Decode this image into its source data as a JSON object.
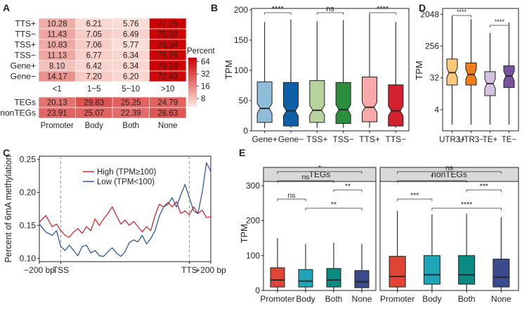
{
  "panel_labels": [
    "A",
    "B",
    "C",
    "D",
    "E"
  ],
  "chart_data": [
    {
      "panel": "A",
      "type": "heatmap",
      "title": "",
      "legend_title": "Percent",
      "legend_ticks": [
        64,
        32,
        16,
        8
      ],
      "color_scale": [
        "#fde9e2",
        "#cc0000"
      ],
      "top": {
        "rows": [
          "TTS+",
          "TTS−",
          "TSS+",
          "TSS−",
          "Gene+",
          "Gene−"
        ],
        "cols": [
          "<1",
          "1~5",
          "5~10",
          ">10"
        ],
        "values": [
          [
            10.28,
            6.21,
            5.76,
            77.75
          ],
          [
            11.43,
            7.05,
            6.49,
            75.02
          ],
          [
            10.83,
            7.06,
            5.77,
            76.34
          ],
          [
            11.13,
            6.77,
            6.34,
            75.76
          ],
          [
            8.1,
            6.42,
            6.34,
            79.14
          ],
          [
            14.17,
            7.2,
            6.2,
            72.43
          ]
        ]
      },
      "bottom": {
        "rows": [
          "TEGs",
          "nonTEGs"
        ],
        "cols": [
          "Promoter",
          "Body",
          "Both",
          "None"
        ],
        "values": [
          [
            20.13,
            29.83,
            25.25,
            24.79
          ],
          [
            23.91,
            25.07,
            22.39,
            28.63
          ]
        ]
      }
    },
    {
      "panel": "B",
      "type": "boxplot",
      "ylabel": "TPM",
      "ylim": [
        0,
        200
      ],
      "yticks": [
        0,
        50,
        100,
        150,
        200
      ],
      "categories": [
        "Gene+",
        "Gene−",
        "TSS+",
        "TSS−",
        "TTS+",
        "TTS−"
      ],
      "colors": [
        "#8fbcd8",
        "#0f5fa6",
        "#b5d39a",
        "#2a8e3e",
        "#f7a9a9",
        "#d2202f"
      ],
      "boxes": [
        {
          "whislo": 5,
          "q1": 14,
          "med": 37,
          "q3": 81,
          "whishi": 180
        },
        {
          "whislo": 5,
          "q1": 8,
          "med": 33,
          "q3": 80,
          "whishi": 184
        },
        {
          "whislo": 5,
          "q1": 14,
          "med": 34,
          "q3": 83,
          "whishi": 181
        },
        {
          "whislo": 5,
          "q1": 12,
          "med": 35,
          "q3": 80,
          "whishi": 183
        },
        {
          "whislo": 5,
          "q1": 15,
          "med": 39,
          "q3": 89,
          "whishi": 193
        },
        {
          "whislo": 5,
          "q1": 8,
          "med": 33,
          "q3": 76,
          "whishi": 180
        }
      ],
      "significance": [
        {
          "from": 0,
          "to": 1,
          "label": "****"
        },
        {
          "from": 2,
          "to": 3,
          "label": "ns"
        },
        {
          "from": 4,
          "to": 5,
          "label": "****"
        }
      ]
    },
    {
      "panel": "D",
      "type": "boxplot",
      "ylabel": "TPM",
      "yscale": "log2",
      "ylim": [
        1,
        3000
      ],
      "yticks": [
        4,
        32,
        256,
        2048
      ],
      "categories": [
        "UTR3+",
        "UTR3−",
        "TE+",
        "TE−"
      ],
      "colors": [
        "#fbc77a",
        "#f07f17",
        "#d3c3e3",
        "#7a52a0"
      ],
      "boxes": [
        {
          "whislo": 1.5,
          "q1": 20,
          "med": 45,
          "q3": 110,
          "whishi": 1800
        },
        {
          "whislo": 1.5,
          "q1": 20,
          "med": 40,
          "q3": 85,
          "whishi": 1500
        },
        {
          "whislo": 1.5,
          "q1": 10,
          "med": 22,
          "q3": 48,
          "whishi": 600
        },
        {
          "whislo": 1.5,
          "q1": 17,
          "med": 36,
          "q3": 70,
          "whishi": 1200
        }
      ],
      "significance": [
        {
          "from": 0,
          "to": 1,
          "label": "****"
        },
        {
          "from": 2,
          "to": 3,
          "label": "****"
        }
      ]
    },
    {
      "panel": "C",
      "type": "line",
      "ylabel": "Percent of 6mA methylation",
      "ylim": [
        0.095,
        0.255
      ],
      "yticks": [
        0.1,
        0.15,
        0.2,
        0.25
      ],
      "xtick_labels": [
        "−200 bp",
        "TSS",
        "TTS",
        "+200 bp"
      ],
      "xtick_positions": [
        0,
        10,
        70,
        80
      ],
      "vlines": [
        10,
        70
      ],
      "legend": [
        "High (TPM≥100)",
        "Low (TPM<100)"
      ],
      "series": [
        {
          "name": "High (TPM≥100)",
          "color": "#d7191c",
          "x": [
            0,
            3,
            6,
            8,
            10,
            12,
            14,
            16,
            18,
            20,
            22,
            24,
            26,
            28,
            30,
            32,
            34,
            36,
            38,
            40,
            42,
            44,
            46,
            48,
            50,
            52,
            54,
            56,
            58,
            60,
            62,
            64,
            66,
            68,
            70,
            72,
            74,
            76,
            78,
            80
          ],
          "y": [
            0.155,
            0.165,
            0.148,
            0.152,
            0.142,
            0.135,
            0.132,
            0.14,
            0.145,
            0.138,
            0.148,
            0.142,
            0.16,
            0.15,
            0.16,
            0.168,
            0.178,
            0.165,
            0.152,
            0.158,
            0.15,
            0.156,
            0.148,
            0.14,
            0.148,
            0.142,
            0.165,
            0.182,
            0.178,
            0.185,
            0.178,
            0.186,
            0.168,
            0.172,
            0.166,
            0.178,
            0.168,
            0.173,
            0.162,
            0.163
          ]
        },
        {
          "name": "Low (TPM<100)",
          "color": "#1f4e9c",
          "x": [
            0,
            3,
            6,
            8,
            10,
            12,
            14,
            16,
            18,
            20,
            22,
            24,
            26,
            28,
            30,
            32,
            34,
            36,
            38,
            40,
            42,
            44,
            46,
            48,
            50,
            52,
            54,
            56,
            58,
            60,
            62,
            64,
            66,
            68,
            70,
            72,
            74,
            76,
            78,
            80
          ],
          "y": [
            0.152,
            0.14,
            0.135,
            0.142,
            0.118,
            0.112,
            0.12,
            0.112,
            0.104,
            0.118,
            0.12,
            0.108,
            0.112,
            0.104,
            0.103,
            0.11,
            0.116,
            0.108,
            0.103,
            0.11,
            0.124,
            0.128,
            0.125,
            0.135,
            0.122,
            0.13,
            0.142,
            0.164,
            0.178,
            0.182,
            0.192,
            0.178,
            0.196,
            0.212,
            0.192,
            0.172,
            0.168,
            0.2,
            0.245,
            0.232
          ]
        }
      ]
    },
    {
      "panel": "E",
      "type": "boxplot",
      "ylabel": "TPM",
      "ylim": [
        0,
        300
      ],
      "yticks": [
        0,
        100,
        200,
        300
      ],
      "facets": [
        "TEGs",
        "nonTEGs"
      ],
      "categories": [
        "Promoter",
        "Body",
        "Both",
        "None"
      ],
      "colors": [
        "#e04434",
        "#20a4b8",
        "#0a8a83",
        "#3a4a8c"
      ],
      "boxes": [
        [
          {
            "whislo": 1,
            "q1": 10,
            "med": 30,
            "q3": 65,
            "whishi": 150
          },
          {
            "whislo": 1,
            "q1": 10,
            "med": 27,
            "q3": 60,
            "whishi": 133
          },
          {
            "whislo": 1,
            "q1": 10,
            "med": 30,
            "q3": 63,
            "whishi": 137
          },
          {
            "whislo": 1,
            "q1": 8,
            "med": 25,
            "q3": 57,
            "whishi": 133
          }
        ],
        [
          {
            "whislo": 1,
            "q1": 10,
            "med": 40,
            "q3": 98,
            "whishi": 228
          },
          {
            "whislo": 1,
            "q1": 18,
            "med": 45,
            "q3": 100,
            "whishi": 218
          },
          {
            "whislo": 1,
            "q1": 18,
            "med": 45,
            "q3": 100,
            "whishi": 220
          },
          {
            "whislo": 1,
            "q1": 10,
            "med": 38,
            "q3": 90,
            "whishi": 210
          }
        ]
      ],
      "significance": [
        [
          {
            "from": 0,
            "to": 3,
            "label": "*",
            "level": 4
          },
          {
            "from": 0,
            "to": 2,
            "label": "ns",
            "level": 3
          },
          {
            "from": 2,
            "to": 3,
            "label": "**",
            "level": 2
          },
          {
            "from": 0,
            "to": 1,
            "label": "ns",
            "level": 1
          },
          {
            "from": 1,
            "to": 3,
            "label": "**",
            "level": 0
          }
        ],
        [
          {
            "from": 0,
            "to": 3,
            "label": "ns",
            "level": 4
          },
          {
            "from": 0,
            "to": 2,
            "label": "*",
            "level": 3
          },
          {
            "from": 2,
            "to": 3,
            "label": "***",
            "level": 2
          },
          {
            "from": 0,
            "to": 1,
            "label": "***",
            "level": 1
          },
          {
            "from": 1,
            "to": 3,
            "label": "****",
            "level": 0
          }
        ]
      ]
    }
  ]
}
